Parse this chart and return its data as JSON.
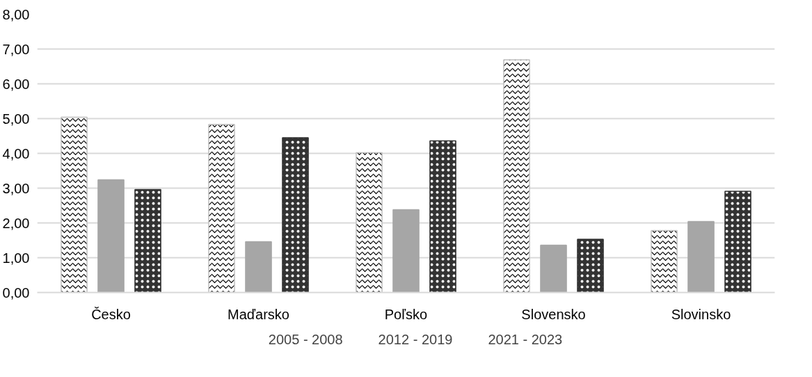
{
  "chart_data": {
    "type": "bar",
    "categories": [
      "Česko",
      "Maďarsko",
      "Poľsko",
      "Slovensko",
      "Slovinsko"
    ],
    "series": [
      {
        "name": "2005 - 2008",
        "color": "#ffffff",
        "values": [
          5.04,
          4.83,
          4.02,
          6.69,
          1.78
        ]
      },
      {
        "name": "2012 - 2019",
        "color": "#a6a6a6",
        "values": [
          3.24,
          1.46,
          2.38,
          1.36,
          2.04
        ]
      },
      {
        "name": "2021 - 2023",
        "color": "#333333",
        "values": [
          2.96,
          4.45,
          4.36,
          1.53,
          2.91
        ]
      }
    ],
    "ylim": [
      0,
      8
    ],
    "yticks": [
      {
        "value": 0,
        "label": "0,00"
      },
      {
        "value": 1,
        "label": "1,00"
      },
      {
        "value": 2,
        "label": "2,00"
      },
      {
        "value": 3,
        "label": "3,00"
      },
      {
        "value": 4,
        "label": "4,00"
      },
      {
        "value": 5,
        "label": "5,00"
      },
      {
        "value": 6,
        "label": "6,00"
      },
      {
        "value": 7,
        "label": "7,00"
      },
      {
        "value": 8,
        "label": "8,00"
      }
    ],
    "grid": "y",
    "legend": "bottom"
  }
}
